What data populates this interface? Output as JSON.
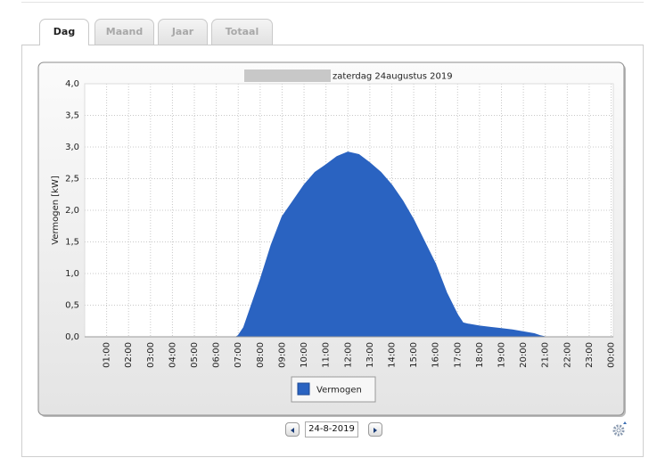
{
  "tabs": [
    "Dag",
    "Maand",
    "Jaar",
    "Totaal"
  ],
  "date_input": "24-8-2019",
  "chart_data": {
    "type": "area",
    "title": "zaterdag 24augustus 2019",
    "y_label": "Vermogen [kW]",
    "x": [
      6.9,
      7.0,
      7.25,
      7.5,
      8.0,
      8.5,
      9.0,
      9.5,
      10.0,
      10.5,
      11.0,
      11.5,
      12.0,
      12.5,
      13.0,
      13.5,
      14.0,
      14.5,
      15.0,
      15.5,
      16.0,
      16.5,
      17.0,
      17.25,
      17.5,
      18.0,
      18.5,
      19.0,
      19.5,
      20.0,
      20.5,
      20.75,
      21.0
    ],
    "series": [
      {
        "name": "Vermogen",
        "color": "#2a63c1",
        "values": [
          0,
          0.02,
          0.15,
          0.4,
          0.9,
          1.45,
          1.9,
          2.15,
          2.4,
          2.6,
          2.72,
          2.85,
          2.92,
          2.88,
          2.75,
          2.6,
          2.4,
          2.15,
          1.85,
          1.5,
          1.15,
          0.7,
          0.35,
          0.22,
          0.2,
          0.17,
          0.15,
          0.13,
          0.11,
          0.08,
          0.05,
          0.02,
          0
        ]
      }
    ],
    "xlim": [
      0,
      24.1
    ],
    "ylim": [
      0,
      4
    ],
    "yticks": [
      {
        "value": 0,
        "label": "0,0"
      },
      {
        "value": 0.5,
        "label": "0,5"
      },
      {
        "value": 1,
        "label": "1,0"
      },
      {
        "value": 1.5,
        "label": "1,5"
      },
      {
        "value": 2,
        "label": "2,0"
      },
      {
        "value": 2.5,
        "label": "2,5"
      },
      {
        "value": 3,
        "label": "3,0"
      },
      {
        "value": 3.5,
        "label": "3,5"
      },
      {
        "value": 4,
        "label": "4,0"
      }
    ],
    "xticks": [
      {
        "value": 1,
        "label": "01:00"
      },
      {
        "value": 2,
        "label": "02:00"
      },
      {
        "value": 3,
        "label": "03:00"
      },
      {
        "value": 4,
        "label": "04:00"
      },
      {
        "value": 5,
        "label": "05:00"
      },
      {
        "value": 6,
        "label": "06:00"
      },
      {
        "value": 7,
        "label": "07:00"
      },
      {
        "value": 8,
        "label": "08:00"
      },
      {
        "value": 9,
        "label": "09:00"
      },
      {
        "value": 10,
        "label": "10:00"
      },
      {
        "value": 11,
        "label": "11:00"
      },
      {
        "value": 12,
        "label": "12:00"
      },
      {
        "value": 13,
        "label": "13:00"
      },
      {
        "value": 14,
        "label": "14:00"
      },
      {
        "value": 15,
        "label": "15:00"
      },
      {
        "value": 16,
        "label": "16:00"
      },
      {
        "value": 17,
        "label": "17:00"
      },
      {
        "value": 18,
        "label": "18:00"
      },
      {
        "value": 19,
        "label": "19:00"
      },
      {
        "value": 20,
        "label": "20:00"
      },
      {
        "value": 21,
        "label": "21:00"
      },
      {
        "value": 22,
        "label": "22:00"
      },
      {
        "value": 23,
        "label": "23:00"
      },
      {
        "value": 24,
        "label": "00:00"
      }
    ],
    "grid": true
  }
}
